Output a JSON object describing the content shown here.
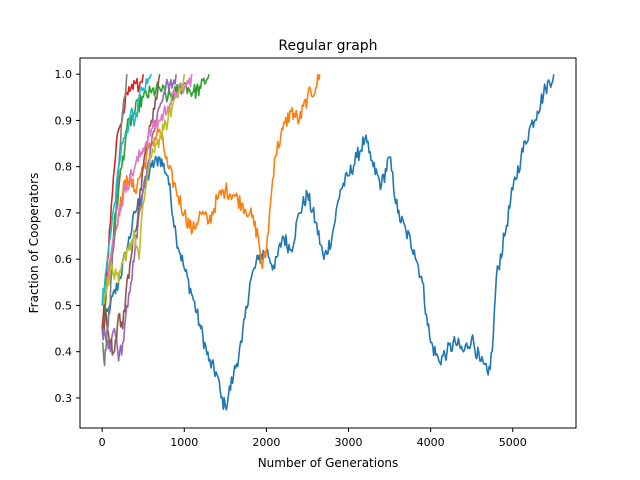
{
  "chart_data": {
    "type": "line",
    "title": "Regular graph",
    "xlabel": "Number of Generations",
    "ylabel": "Fraction of Cooperators",
    "xlim": [
      -270,
      5770
    ],
    "ylim": [
      0.235,
      1.035
    ],
    "xticks": [
      0,
      1000,
      2000,
      3000,
      4000,
      5000
    ],
    "yticks": [
      0.3,
      0.4,
      0.5,
      0.6,
      0.7,
      0.8,
      0.9,
      1.0
    ],
    "xtick_labels": [
      "0",
      "1000",
      "2000",
      "3000",
      "4000",
      "5000"
    ],
    "ytick_labels": [
      "0.3",
      "0.4",
      "0.5",
      "0.6",
      "0.7",
      "0.8",
      "0.9",
      "1.0"
    ],
    "grid": false,
    "legend": "none",
    "series": [
      {
        "color": "#1f77b4",
        "x": [
          0,
          100,
          200,
          300,
          400,
          500,
          600,
          700,
          800,
          900,
          1000,
          1100,
          1200,
          1300,
          1400,
          1450,
          1500,
          1600,
          1700,
          1800,
          1900,
          2000,
          2100,
          2200,
          2300,
          2400,
          2500,
          2600,
          2700,
          2800,
          2900,
          3000,
          3100,
          3200,
          3250,
          3300,
          3400,
          3500,
          3600,
          3700,
          3800,
          3900,
          3950,
          4000,
          4100,
          4200,
          4300,
          4400,
          4500,
          4600,
          4700,
          4750,
          4800,
          4900,
          5000,
          5100,
          5200,
          5300,
          5400,
          5500
        ],
        "y": [
          0.45,
          0.5,
          0.55,
          0.62,
          0.7,
          0.75,
          0.8,
          0.82,
          0.78,
          0.65,
          0.58,
          0.52,
          0.45,
          0.38,
          0.35,
          0.3,
          0.28,
          0.35,
          0.42,
          0.55,
          0.6,
          0.62,
          0.58,
          0.65,
          0.62,
          0.7,
          0.74,
          0.68,
          0.6,
          0.65,
          0.75,
          0.78,
          0.82,
          0.86,
          0.83,
          0.8,
          0.76,
          0.82,
          0.7,
          0.66,
          0.62,
          0.55,
          0.48,
          0.42,
          0.38,
          0.4,
          0.42,
          0.4,
          0.43,
          0.38,
          0.35,
          0.4,
          0.56,
          0.65,
          0.75,
          0.82,
          0.88,
          0.92,
          0.97,
          1.0
        ]
      },
      {
        "color": "#ff7f0e",
        "x": [
          0,
          100,
          200,
          300,
          400,
          500,
          600,
          700,
          800,
          900,
          1000,
          1100,
          1200,
          1300,
          1400,
          1500,
          1600,
          1700,
          1800,
          1900,
          1950,
          2000,
          2050,
          2100,
          2200,
          2300,
          2400,
          2500,
          2600,
          2650
        ],
        "y": [
          0.5,
          0.6,
          0.7,
          0.78,
          0.75,
          0.8,
          0.85,
          0.88,
          0.8,
          0.75,
          0.7,
          0.66,
          0.7,
          0.68,
          0.73,
          0.75,
          0.74,
          0.72,
          0.7,
          0.65,
          0.58,
          0.62,
          0.72,
          0.82,
          0.88,
          0.92,
          0.9,
          0.95,
          0.97,
          1.0
        ]
      },
      {
        "color": "#2ca02c",
        "x": [
          0,
          100,
          200,
          300,
          400,
          500,
          600,
          700,
          800,
          900,
          1000,
          1100,
          1200,
          1300
        ],
        "y": [
          0.45,
          0.6,
          0.75,
          0.88,
          0.92,
          0.95,
          0.96,
          0.97,
          0.95,
          0.96,
          0.98,
          0.96,
          0.97,
          1.0
        ]
      },
      {
        "color": "#d62728",
        "x": [
          0,
          50,
          100,
          150,
          200,
          250,
          300,
          350,
          400,
          450,
          500
        ],
        "y": [
          0.45,
          0.55,
          0.68,
          0.8,
          0.88,
          0.92,
          0.96,
          0.97,
          0.98,
          0.97,
          1.0
        ]
      },
      {
        "color": "#9467bd",
        "x": [
          0,
          50,
          100,
          150,
          200,
          250,
          300,
          350,
          400,
          450,
          500,
          550,
          600,
          650,
          700,
          750,
          800,
          850,
          900
        ],
        "y": [
          0.45,
          0.42,
          0.4,
          0.45,
          0.38,
          0.42,
          0.5,
          0.55,
          0.62,
          0.7,
          0.75,
          0.8,
          0.85,
          0.9,
          0.93,
          0.96,
          0.98,
          0.97,
          1.0
        ]
      },
      {
        "color": "#8c564b",
        "x": [
          0,
          50,
          100,
          150,
          200,
          250,
          300,
          350,
          400,
          450,
          500,
          550,
          600,
          650,
          700
        ],
        "y": [
          0.45,
          0.48,
          0.42,
          0.4,
          0.48,
          0.45,
          0.55,
          0.6,
          0.66,
          0.72,
          0.8,
          0.85,
          0.9,
          0.95,
          1.0
        ]
      },
      {
        "color": "#e377c2",
        "x": [
          0,
          100,
          200,
          300,
          400,
          500,
          600,
          700,
          800,
          900,
          1000,
          1050,
          1100
        ],
        "y": [
          0.5,
          0.6,
          0.7,
          0.76,
          0.8,
          0.84,
          0.88,
          0.9,
          0.93,
          0.96,
          0.97,
          0.98,
          1.0
        ]
      },
      {
        "color": "#7f7f7f",
        "x": [
          0,
          30,
          60,
          90,
          120,
          150,
          180,
          210,
          240,
          270,
          300
        ],
        "y": [
          0.42,
          0.37,
          0.45,
          0.5,
          0.58,
          0.65,
          0.75,
          0.82,
          0.9,
          0.95,
          1.0
        ]
      },
      {
        "color": "#bcbd22",
        "x": [
          0,
          100,
          200,
          300,
          400,
          450,
          500,
          550,
          600,
          650,
          700,
          750,
          800,
          850,
          900,
          950,
          1000
        ],
        "y": [
          0.5,
          0.58,
          0.55,
          0.62,
          0.65,
          0.6,
          0.72,
          0.78,
          0.82,
          0.85,
          0.86,
          0.88,
          0.9,
          0.93,
          0.95,
          0.97,
          1.0
        ]
      },
      {
        "color": "#17becf",
        "x": [
          0,
          50,
          100,
          150,
          200,
          250,
          300,
          350,
          400,
          450,
          500,
          550,
          600
        ],
        "y": [
          0.5,
          0.58,
          0.65,
          0.72,
          0.8,
          0.85,
          0.88,
          0.92,
          0.9,
          0.95,
          0.97,
          0.98,
          1.0
        ]
      }
    ]
  }
}
